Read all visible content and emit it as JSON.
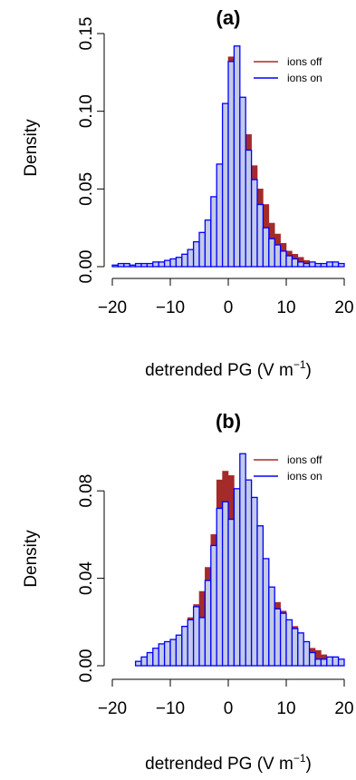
{
  "chart_data": [
    {
      "type": "bar",
      "title": "(a)",
      "xlabel": "detrended PG (V m",
      "xlabel_sup": "−1",
      "xlabel_close": ")",
      "ylabel": "Density",
      "xlim": [
        -20,
        20
      ],
      "ylim": [
        0,
        0.15
      ],
      "xticks": [
        -20,
        -10,
        0,
        10,
        20
      ],
      "xtick_labels": [
        "−20",
        "−10",
        "0",
        "10",
        "20"
      ],
      "yticks": [
        0,
        0.05,
        0.1,
        0.15
      ],
      "ytick_labels": [
        "0.00",
        "0.05",
        "0.10",
        "0.15"
      ],
      "bin_width": 1,
      "bin_start": -20,
      "legend_position": "top-right",
      "colors": {
        "ions_off": "#a52a2a",
        "ions_on_edge": "#0000ff",
        "ions_on_fill": "#c3cbe6"
      },
      "series": [
        {
          "name": "ions off",
          "values": [
            0.0,
            0.001,
            0.001,
            0.001,
            0.002,
            0.001,
            0.002,
            0.002,
            0.003,
            0.003,
            0.004,
            0.005,
            0.008,
            0.01,
            0.015,
            0.02,
            0.028,
            0.042,
            0.062,
            0.1,
            0.135,
            0.138,
            0.103,
            0.085,
            0.065,
            0.05,
            0.04,
            0.028,
            0.021,
            0.015,
            0.01,
            0.008,
            0.006,
            0.004,
            0.002,
            0.002,
            0.002,
            0.001,
            0.001,
            0.001
          ]
        },
        {
          "name": "ions on",
          "values": [
            0.001,
            0.002,
            0.002,
            0.001,
            0.002,
            0.002,
            0.002,
            0.003,
            0.003,
            0.004,
            0.005,
            0.006,
            0.008,
            0.011,
            0.016,
            0.022,
            0.03,
            0.045,
            0.066,
            0.105,
            0.132,
            0.142,
            0.109,
            0.075,
            0.056,
            0.04,
            0.025,
            0.018,
            0.014,
            0.01,
            0.007,
            0.005,
            0.003,
            0.002,
            0.003,
            0.002,
            0.002,
            0.003,
            0.003,
            0.002
          ]
        }
      ]
    },
    {
      "type": "bar",
      "title": "(b)",
      "xlabel": "detrended PG (V m",
      "xlabel_sup": "−1",
      "xlabel_close": ")",
      "ylabel": "Density",
      "xlim": [
        -20,
        20
      ],
      "ylim": [
        0,
        0.1
      ],
      "xticks": [
        -20,
        -10,
        0,
        10,
        20
      ],
      "xtick_labels": [
        "−20",
        "−10",
        "0",
        "10",
        "20"
      ],
      "yticks": [
        0,
        0.04,
        0.08
      ],
      "ytick_labels": [
        "0.00",
        "0.04",
        "0.08"
      ],
      "bin_width": 1,
      "bin_start": -20,
      "legend_position": "top-right",
      "colors": {
        "ions_off": "#a52a2a",
        "ions_on_edge": "#0000ff",
        "ions_on_fill": "#c3cbe6"
      },
      "series": [
        {
          "name": "ions off",
          "values": [
            0.0,
            0.0,
            0.0,
            0.0,
            0.001,
            0.002,
            0.004,
            0.006,
            0.008,
            0.01,
            0.012,
            0.014,
            0.018,
            0.022,
            0.028,
            0.034,
            0.045,
            0.06,
            0.085,
            0.089,
            0.087,
            0.08,
            0.072,
            0.06,
            0.05,
            0.043,
            0.038,
            0.033,
            0.029,
            0.025,
            0.021,
            0.018,
            0.015,
            0.011,
            0.008,
            0.007,
            0.005,
            0.004,
            0.003,
            0.002
          ]
        },
        {
          "name": "ions on",
          "values": [
            0.0,
            0.0,
            0.0,
            0.0,
            0.002,
            0.004,
            0.006,
            0.008,
            0.01,
            0.011,
            0.012,
            0.014,
            0.018,
            0.021,
            0.027,
            0.022,
            0.039,
            0.055,
            0.072,
            0.075,
            0.067,
            0.081,
            0.097,
            0.085,
            0.077,
            0.064,
            0.049,
            0.036,
            0.026,
            0.024,
            0.021,
            0.017,
            0.015,
            0.011,
            0.006,
            0.003,
            0.003,
            0.004,
            0.004,
            0.003
          ]
        }
      ]
    }
  ]
}
